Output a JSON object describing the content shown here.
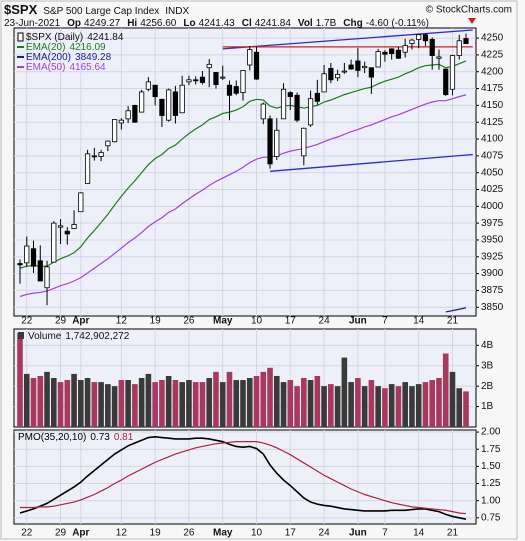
{
  "chart_data": [
    {
      "type": "candlestick",
      "title": "$SPX",
      "subtitle": "S&P 500 Large Cap Index",
      "exchange": "INDX",
      "source": "© StockCharts.com",
      "quote": {
        "date": "23-Jun-2021",
        "items": [
          {
            "label": "Op",
            "value": "4249.27"
          },
          {
            "label": "Hi",
            "value": "4256.60"
          },
          {
            "label": "Lo",
            "value": "4241.43"
          },
          {
            "label": "Cl",
            "value": "4241.84"
          },
          {
            "label": "Vol",
            "value": "1.7B"
          },
          {
            "label": "Chg",
            "value": "-4.60 (-0.11%)"
          }
        ]
      },
      "name": "$SPX (Daily)",
      "candle_color": "#000000",
      "categories": [
        null,
        "22",
        null,
        null,
        null,
        null,
        "29",
        null,
        null,
        "Apr",
        null,
        null,
        null,
        null,
        null,
        "12",
        null,
        null,
        null,
        null,
        "19",
        null,
        null,
        null,
        null,
        "26",
        null,
        null,
        null,
        null,
        "May",
        null,
        null,
        null,
        null,
        "10",
        null,
        null,
        null,
        null,
        "17",
        null,
        null,
        null,
        null,
        "24",
        null,
        null,
        null,
        null,
        "Jun",
        null,
        null,
        null,
        "7",
        null,
        null,
        null,
        null,
        "14",
        null,
        null,
        null,
        null,
        "21",
        null,
        null
      ],
      "open": [
        3915,
        3916,
        3937,
        3919,
        3879,
        3917,
        3969,
        3963,
        3967,
        3992,
        4034,
        4075,
        4074,
        4090,
        4096,
        4124,
        4130,
        4150,
        4140,
        4174,
        4180,
        4159,
        4128,
        4170,
        4139,
        4185,
        4188,
        4192,
        4206,
        4199,
        4192,
        4180,
        4178,
        4169,
        4210,
        4229,
        4130,
        4130,
        4074,
        4130,
        4169,
        4165,
        4075,
        4121,
        4168,
        4170,
        4205,
        4191,
        4201,
        4210,
        4216,
        4206,
        4206,
        4207,
        4229,
        4234,
        4232,
        4229,
        4242,
        4248,
        4255,
        4248,
        4220,
        4204,
        4174,
        4224,
        4249.27
      ],
      "high": [
        3921,
        3955,
        3949,
        3942,
        3919,
        3978,
        3981,
        3969,
        3994,
        4021,
        4084,
        4087,
        4084,
        4098,
        4129,
        4131,
        4149,
        4151,
        4173,
        4192,
        4180,
        4160,
        4175,
        4179,
        4194,
        4194,
        4193,
        4201,
        4219,
        4199,
        4209,
        4187,
        4187,
        4202,
        4238,
        4237,
        4154,
        4135,
        4131,
        4183,
        4171,
        4169,
        4117,
        4172,
        4188,
        4210,
        4213,
        4203,
        4213,
        4218,
        4235,
        4215,
        4206,
        4234,
        4232,
        4235,
        4237,
        4249,
        4249,
        4255,
        4257,
        4251,
        4233,
        4204,
        4225,
        4255,
        4256.6
      ],
      "low": [
        3885,
        3910,
        3901,
        3889,
        3853,
        3917,
        3944,
        3943,
        3966,
        3992,
        4034,
        4068,
        4067,
        4082,
        4095,
        4114,
        4124,
        4124,
        4140,
        4171,
        4150,
        4118,
        4126,
        4123,
        4139,
        4180,
        4181,
        4181,
        4177,
        4175,
        4188,
        4128,
        4165,
        4157,
        4202,
        4188,
        4122,
        4056,
        4069,
        4130,
        4143,
        4125,
        4061,
        4118,
        4151,
        4170,
        4183,
        4186,
        4197,
        4203,
        4192,
        4198,
        4167,
        4207,
        4215,
        4218,
        4219,
        4221,
        4233,
        4235,
        4238,
        4203,
        4203,
        4164,
        4165,
        4218,
        4241.43
      ],
      "close": [
        3913,
        3941,
        3911,
        3889,
        3910,
        3975,
        3971,
        3959,
        3973,
        4020,
        4078,
        4074,
        4080,
        4097,
        4129,
        4128,
        4142,
        4125,
        4170,
        4185,
        4163,
        4135,
        4173,
        4135,
        4180,
        4188,
        4187,
        4184,
        4211,
        4181,
        4192,
        4165,
        4168,
        4202,
        4233,
        4189,
        4152,
        4063,
        4113,
        4174,
        4163,
        4128,
        4116,
        4160,
        4156,
        4197,
        4188,
        4196,
        4201,
        4204,
        4202,
        4208,
        4192,
        4230,
        4226,
        4227,
        4220,
        4239,
        4247,
        4255,
        4246,
        4224,
        4222,
        4166,
        4224,
        4246,
        4241.84
      ],
      "series": [
        {
          "name": "EMA(20)",
          "color": "#1f7a1f",
          "values": [
            3908,
            3911,
            3912,
            3911,
            3911,
            3917,
            3922,
            3926,
            3931,
            3940,
            3953,
            3964,
            3976,
            3988,
            4002,
            4015,
            4027,
            4038,
            4050,
            4062,
            4071,
            4077,
            4086,
            4091,
            4100,
            4108,
            4115,
            4121,
            4129,
            4133,
            4138,
            4140,
            4143,
            4148,
            4156,
            4159,
            4158,
            4149,
            4146,
            4149,
            4150,
            4148,
            4146,
            4148,
            4150,
            4155,
            4158,
            4162,
            4166,
            4169,
            4172,
            4175,
            4177,
            4182,
            4186,
            4189,
            4192,
            4197,
            4201,
            4206,
            4209,
            4210,
            4211,
            4206,
            4208,
            4212,
            4216.09
          ]
        },
        {
          "name": "EMA(200)",
          "color": "#1c1c8a",
          "values": [
            null,
            null,
            null,
            null,
            null,
            null,
            null,
            null,
            null,
            null,
            null,
            null,
            null,
            null,
            null,
            null,
            null,
            null,
            null,
            null,
            null,
            null,
            null,
            null,
            null,
            null,
            null,
            null,
            null,
            null,
            null,
            null,
            null,
            null,
            null,
            null,
            null,
            null,
            null,
            null,
            null,
            null,
            null,
            null,
            null,
            null,
            null,
            null,
            null,
            null,
            null,
            null,
            null,
            null,
            null,
            null,
            null,
            null,
            null,
            null,
            null,
            null,
            null,
            3843,
            3845,
            3847,
            3849.28
          ]
        },
        {
          "name": "EMA(50)",
          "color": "#a040e0",
          "values": [
            3866,
            3869,
            3871,
            3872,
            3874,
            3878,
            3882,
            3885,
            3889,
            3894,
            3901,
            3908,
            3915,
            3922,
            3930,
            3938,
            3946,
            3953,
            3961,
            3970,
            3977,
            3983,
            3991,
            3996,
            4004,
            4011,
            4018,
            4024,
            4031,
            4037,
            4042,
            4047,
            4052,
            4058,
            4065,
            4070,
            4073,
            4073,
            4075,
            4079,
            4082,
            4084,
            4086,
            4089,
            4092,
            4096,
            4100,
            4103,
            4107,
            4111,
            4114,
            4118,
            4121,
            4125,
            4129,
            4133,
            4136,
            4140,
            4144,
            4148,
            4152,
            4155,
            4157,
            4157,
            4160,
            4163,
            4165.64
          ]
        }
      ],
      "trendlines": [
        {
          "color": "#2a2ad0",
          "points": [
            [
              30,
              4234
            ],
            [
              67,
              4262
            ]
          ]
        },
        {
          "color": "#2a2ad0",
          "points": [
            [
              37,
              4052
            ],
            [
              67,
              4077
            ]
          ]
        },
        {
          "color": "#d02020",
          "points": [
            [
              30,
              4237
            ],
            [
              67,
              4237
            ]
          ]
        }
      ],
      "ylim": [
        3837,
        4265
      ],
      "yticks": [
        3850,
        3875,
        3900,
        3925,
        3950,
        3975,
        4000,
        4025,
        4050,
        4075,
        4100,
        4125,
        4150,
        4175,
        4200,
        4225,
        4250
      ],
      "grid": true
    },
    {
      "type": "bar",
      "legend": {
        "label": "Volume",
        "value_label": "1,742,902,272"
      },
      "values": [
        4.6,
        2.6,
        2.4,
        2.5,
        2.7,
        2.4,
        2.2,
        2.3,
        2.6,
        2.3,
        2.4,
        2.2,
        2.2,
        2.1,
        2.0,
        2.3,
        2.3,
        2.1,
        2.4,
        2.6,
        2.2,
        2.3,
        2.5,
        2.3,
        2.2,
        2.3,
        2.2,
        2.2,
        2.4,
        2.7,
        2.2,
        2.7,
        2.3,
        2.3,
        2.4,
        2.5,
        2.7,
        2.9,
        2.5,
        2.2,
        2.3,
        2.0,
        2.4,
        2.3,
        2.5,
        2.0,
        2.1,
        2.0,
        3.4,
        2.2,
        2.4,
        2.0,
        2.3,
        2.0,
        1.9,
        2.1,
        2.0,
        2.2,
        2.0,
        2.1,
        2.2,
        2.3,
        2.4,
        3.6,
        2.7,
        1.9,
        1.742902272
      ],
      "up_color": "#3a3a3a",
      "down_color": "#a8385e",
      "ylim": [
        0,
        4.8
      ],
      "yticks": [
        {
          "value": 1,
          "label": "1B"
        },
        {
          "value": 2,
          "label": "2B"
        },
        {
          "value": 3,
          "label": "3B"
        },
        {
          "value": 4,
          "label": "4B"
        }
      ],
      "grid": true
    },
    {
      "type": "line",
      "categories": [
        null,
        "22",
        null,
        null,
        null,
        null,
        "29",
        null,
        null,
        "Apr",
        null,
        null,
        null,
        null,
        null,
        "12",
        null,
        null,
        null,
        null,
        "19",
        null,
        null,
        null,
        null,
        "26",
        null,
        null,
        null,
        null,
        "May",
        null,
        null,
        null,
        null,
        "10",
        null,
        null,
        null,
        null,
        "17",
        null,
        null,
        null,
        null,
        "24",
        null,
        null,
        null,
        null,
        "Jun",
        null,
        null,
        null,
        "7",
        null,
        null,
        null,
        null,
        "14",
        null,
        null,
        null,
        null,
        "21",
        null,
        null
      ],
      "series": [
        {
          "name": "PMO(35,20,10)",
          "color": "#000000",
          "values": [
            0.82,
            0.85,
            0.88,
            0.92,
            0.96,
            1.02,
            1.08,
            1.14,
            1.2,
            1.27,
            1.36,
            1.44,
            1.52,
            1.6,
            1.68,
            1.74,
            1.8,
            1.84,
            1.88,
            1.92,
            1.93,
            1.92,
            1.91,
            1.9,
            1.9,
            1.9,
            1.91,
            1.91,
            1.9,
            1.88,
            1.86,
            1.82,
            1.79,
            1.78,
            1.79,
            1.76,
            1.68,
            1.52,
            1.4,
            1.3,
            1.22,
            1.13,
            1.04,
            0.98,
            0.95,
            0.93,
            0.92,
            0.9,
            0.88,
            0.87,
            0.86,
            0.85,
            0.85,
            0.85,
            0.85,
            0.86,
            0.86,
            0.86,
            0.87,
            0.88,
            0.88,
            0.86,
            0.84,
            0.8,
            0.77,
            0.75,
            0.73
          ]
        },
        {
          "color": "#b02040",
          "values": [
            0.9,
            0.9,
            0.9,
            0.91,
            0.91,
            0.92,
            0.94,
            0.96,
            0.98,
            1.01,
            1.05,
            1.09,
            1.14,
            1.19,
            1.25,
            1.3,
            1.36,
            1.41,
            1.46,
            1.51,
            1.56,
            1.6,
            1.64,
            1.68,
            1.71,
            1.74,
            1.77,
            1.79,
            1.81,
            1.83,
            1.84,
            1.85,
            1.86,
            1.86,
            1.86,
            1.86,
            1.84,
            1.81,
            1.77,
            1.72,
            1.67,
            1.61,
            1.55,
            1.49,
            1.43,
            1.37,
            1.32,
            1.27,
            1.22,
            1.17,
            1.13,
            1.09,
            1.06,
            1.03,
            1.0,
            0.97,
            0.95,
            0.93,
            0.91,
            0.9,
            0.89,
            0.88,
            0.87,
            0.86,
            0.84,
            0.82,
            0.81
          ]
        }
      ],
      "ylim": [
        0.66,
        2.03
      ],
      "yticks": [
        {
          "value": 2,
          "label": "2.00"
        },
        1.75,
        {
          "value": 1.5,
          "label": "1.50"
        },
        1.25,
        {
          "value": 1,
          "label": "1.00"
        },
        0.75
      ],
      "grid": true
    }
  ]
}
